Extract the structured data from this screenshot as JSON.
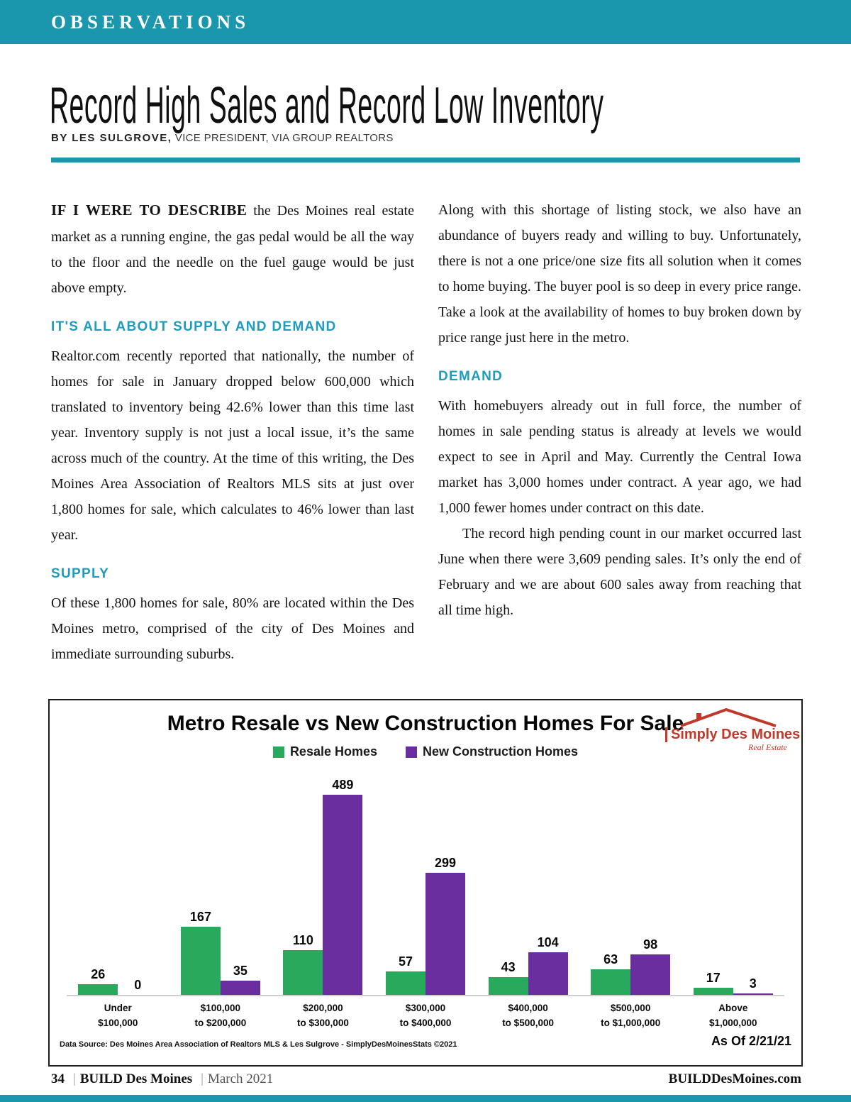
{
  "page": {
    "section_label": "OBSERVATIONS",
    "title": "Record High Sales and Record Low Inventory",
    "byline": {
      "bold": "BY LES SULGROVE,",
      "rest": " VICE PRESIDENT, VIA GROUP REALTORS"
    }
  },
  "article": {
    "col1": {
      "p1_lead": "IF I WERE TO DESCRIBE",
      "p1_rest": " the Des Moines real estate market as a running engine, the gas pedal would be all the way to the floor and the needle on the fuel gauge would be just above empty.",
      "h1": "IT'S ALL ABOUT SUPPLY AND DEMAND",
      "p2": "Realtor.com recently reported that nationally, the number of homes for sale in January dropped below 600,000 which translated to inventory being 42.6% lower than this time last year. Inventory supply is not just a local issue, it’s the same across much of the country. At the time of this writing, the Des Moines Area Association of Realtors MLS sits at just over 1,800 homes for sale, which calculates to 46% lower than last year.",
      "h2": "SUPPLY",
      "p3": "Of these 1,800 homes for sale, 80% are located within the Des Moines metro, comprised of the city of Des Moines and immediate surrounding suburbs."
    },
    "col2": {
      "p1": "Along with this shortage of listing stock, we also have an abundance of buyers ready and willing to buy. Unfortunately, there is not a one price/one size fits all solution when it comes to home buying. The buyer pool is so deep in every price range. Take a look at the availability of homes to buy broken down by price range just here in the metro.",
      "h1": "DEMAND",
      "p2": "With homebuyers already out in full force, the number of homes in sale pending status is already at levels we would expect to see in April and May. Currently the Central Iowa market has 3,000 homes under contract. A year ago, we had 1,000 fewer homes under contract on this date.",
      "p3": "The record high pending count in our market occurred last June when there were 3,609 pending sales. It’s only the end of February and we are about 600 sales away from reaching that all time high."
    }
  },
  "chart_data": {
    "type": "bar",
    "title": "Metro Resale vs New Construction Homes For Sale",
    "categories": [
      [
        "Under",
        "$100,000"
      ],
      [
        "$100,000",
        "to $200,000"
      ],
      [
        "$200,000",
        "to $300,000"
      ],
      [
        "$300,000",
        "to $400,000"
      ],
      [
        "$400,000",
        "to $500,000"
      ],
      [
        "$500,000",
        "to $1,000,000"
      ],
      [
        "Above",
        "$1,000,000"
      ]
    ],
    "series": [
      {
        "name": "Resale Homes",
        "color": "#29a95c",
        "values": [
          26,
          167,
          110,
          57,
          43,
          63,
          17
        ]
      },
      {
        "name": "New Construction Homes",
        "color": "#6b2e9e",
        "values": [
          0,
          35,
          489,
          299,
          104,
          98,
          3
        ]
      }
    ],
    "ylim": [
      0,
      500
    ],
    "grid": false,
    "legend_position": "top",
    "source_note": "Data Source: Des Moines Area Association of Realtors MLS & Les Sulgrove - SimplyDesMoinesStats ©2021",
    "as_of": "As Of 2/21/21",
    "logo": {
      "name": "Simply Des Moines",
      "tagline": "Real Estate",
      "color": "#c0392b"
    }
  },
  "footer": {
    "page_number": "34",
    "magazine": "BUILD Des Moines",
    "issue": "March 2021",
    "website": "BUILDDesMoines.com",
    "separator": "|"
  },
  "colors": {
    "teal": "#1a96ad",
    "heading_teal": "#1e9cbe"
  }
}
